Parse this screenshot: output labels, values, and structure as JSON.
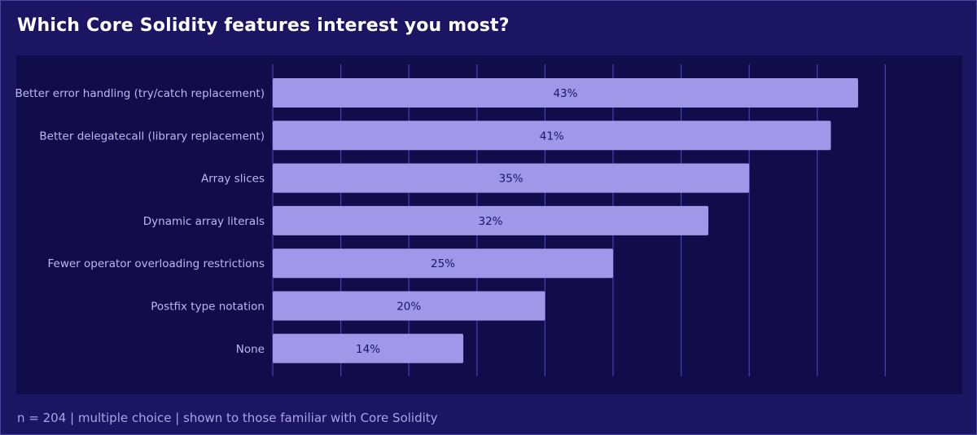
{
  "title": "Which Core Solidity features interest you most?",
  "footnote": "n = 204 | multiple choice | shown to those familiar with Core Solidity",
  "colors": {
    "background": "#1b1564",
    "plot_background": "#120c4b",
    "bar": "#a097e8",
    "gridline": "#4b3fb8",
    "category_text": "#bdb8f2",
    "value_text": "#1b1564"
  },
  "chart_data": {
    "type": "bar",
    "orientation": "horizontal",
    "title": "Which Core Solidity features interest you most?",
    "categories": [
      "Better error handling (try/catch replacement)",
      "Better delegatecall (library replacement)",
      "Array slices",
      "Dynamic array literals",
      "Fewer operator overloading restrictions",
      "Postfix type notation",
      "None"
    ],
    "values": [
      43,
      41,
      35,
      32,
      25,
      20,
      14
    ],
    "value_labels": [
      "43%",
      "41%",
      "35%",
      "32%",
      "25%",
      "20%",
      "14%"
    ],
    "xlim": [
      0,
      45
    ],
    "gridline_step": 5,
    "grid": true,
    "legend": "none"
  }
}
